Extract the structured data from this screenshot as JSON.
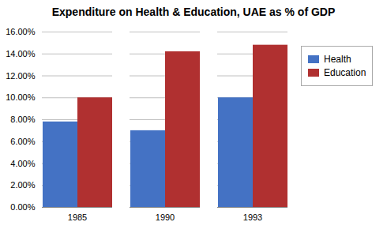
{
  "chart_data": {
    "type": "bar",
    "title": "Expenditure on Health & Education, UAE as % of GDP",
    "categories": [
      "1985",
      "1990",
      "1993"
    ],
    "series": [
      {
        "name": "Health",
        "color": "#4472C4",
        "values": [
          0.078,
          0.07,
          0.1
        ]
      },
      {
        "name": "Education",
        "color": "#B03030",
        "values": [
          0.1,
          0.142,
          0.148
        ]
      }
    ],
    "ylim": [
      0,
      0.16
    ],
    "yticks": [
      {
        "value": 0.0,
        "label": "0.00%"
      },
      {
        "value": 0.02,
        "label": "2.00%"
      },
      {
        "value": 0.04,
        "label": "4.00%"
      },
      {
        "value": 0.06,
        "label": "6.00%"
      },
      {
        "value": 0.08,
        "label": "8.00%"
      },
      {
        "value": 0.1,
        "label": "10.00%"
      },
      {
        "value": 0.12,
        "label": "12.00%"
      },
      {
        "value": 0.14,
        "label": "14.00%"
      },
      {
        "value": 0.16,
        "label": "16.00%"
      }
    ],
    "grid": true,
    "legend": "right"
  }
}
